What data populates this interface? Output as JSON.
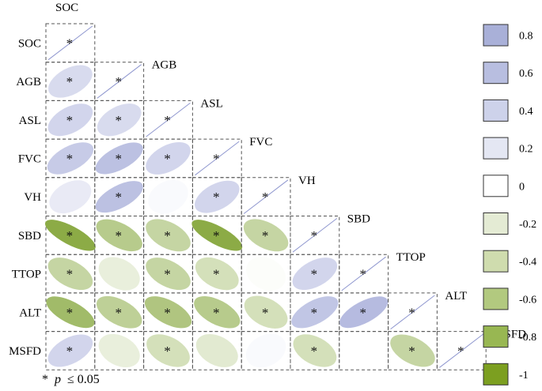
{
  "chart_data": {
    "type": "heatmap",
    "subtype": "lower-triangle correlation ellipse matrix",
    "variables": [
      "SOC",
      "AGB",
      "ASL",
      "FVC",
      "VH",
      "SBD",
      "TTOP",
      "ALT",
      "MSFD"
    ],
    "matrix": [
      [
        1,
        null,
        null,
        null,
        null,
        null,
        null,
        null,
        null
      ],
      [
        0.35,
        1,
        null,
        null,
        null,
        null,
        null,
        null,
        null
      ],
      [
        0.4,
        0.35,
        1,
        null,
        null,
        null,
        null,
        null,
        null
      ],
      [
        0.5,
        0.6,
        0.4,
        1,
        null,
        null,
        null,
        null,
        null
      ],
      [
        0.2,
        0.6,
        0.05,
        0.4,
        1,
        null,
        null,
        null,
        null
      ],
      [
        -0.8,
        -0.5,
        -0.4,
        -0.8,
        -0.4,
        1,
        null,
        null,
        null
      ],
      [
        -0.4,
        -0.15,
        -0.4,
        -0.3,
        -0.02,
        0.4,
        1,
        null,
        null
      ],
      [
        -0.65,
        -0.45,
        -0.55,
        -0.5,
        -0.3,
        0.55,
        0.65,
        1,
        null
      ],
      [
        0.4,
        -0.15,
        -0.3,
        -0.2,
        0.05,
        -0.3,
        0,
        -0.4,
        1
      ]
    ],
    "significant": [
      [
        true,
        false,
        false,
        false,
        false,
        false,
        false,
        false,
        false
      ],
      [
        true,
        true,
        false,
        false,
        false,
        false,
        false,
        false,
        false
      ],
      [
        true,
        true,
        true,
        false,
        false,
        false,
        false,
        false,
        false
      ],
      [
        true,
        true,
        true,
        true,
        false,
        false,
        false,
        false,
        false
      ],
      [
        false,
        true,
        false,
        true,
        true,
        false,
        false,
        false,
        false
      ],
      [
        true,
        true,
        true,
        true,
        true,
        true,
        false,
        false,
        false
      ],
      [
        true,
        false,
        true,
        true,
        false,
        true,
        true,
        false,
        false
      ],
      [
        true,
        true,
        true,
        true,
        true,
        true,
        true,
        true,
        false
      ],
      [
        true,
        false,
        true,
        false,
        false,
        true,
        false,
        true,
        true
      ]
    ],
    "legend": {
      "values": [
        "0.8",
        "0.6",
        "0.4",
        "0.2",
        "0",
        "-0.2",
        "-0.4",
        "-0.6",
        "-0.8",
        "-1"
      ],
      "colors": [
        "#a9b0d8",
        "#b8bee0",
        "#cdd2ea",
        "#e4e7f3",
        "#ffffff",
        "#e4ebd4",
        "#cfdcae",
        "#b2c97f",
        "#98b752",
        "#7c9f20"
      ]
    },
    "colors": {
      "positive_max": "#8f97cf",
      "negative_max": "#6f9618",
      "star": "#111111",
      "cell_border": "#555555",
      "diagonal_line": "#8f97cf"
    },
    "significance_mark": "*",
    "footnote": {
      "star": "*",
      "variable": "p",
      "relation": "≤ 0.05"
    }
  }
}
